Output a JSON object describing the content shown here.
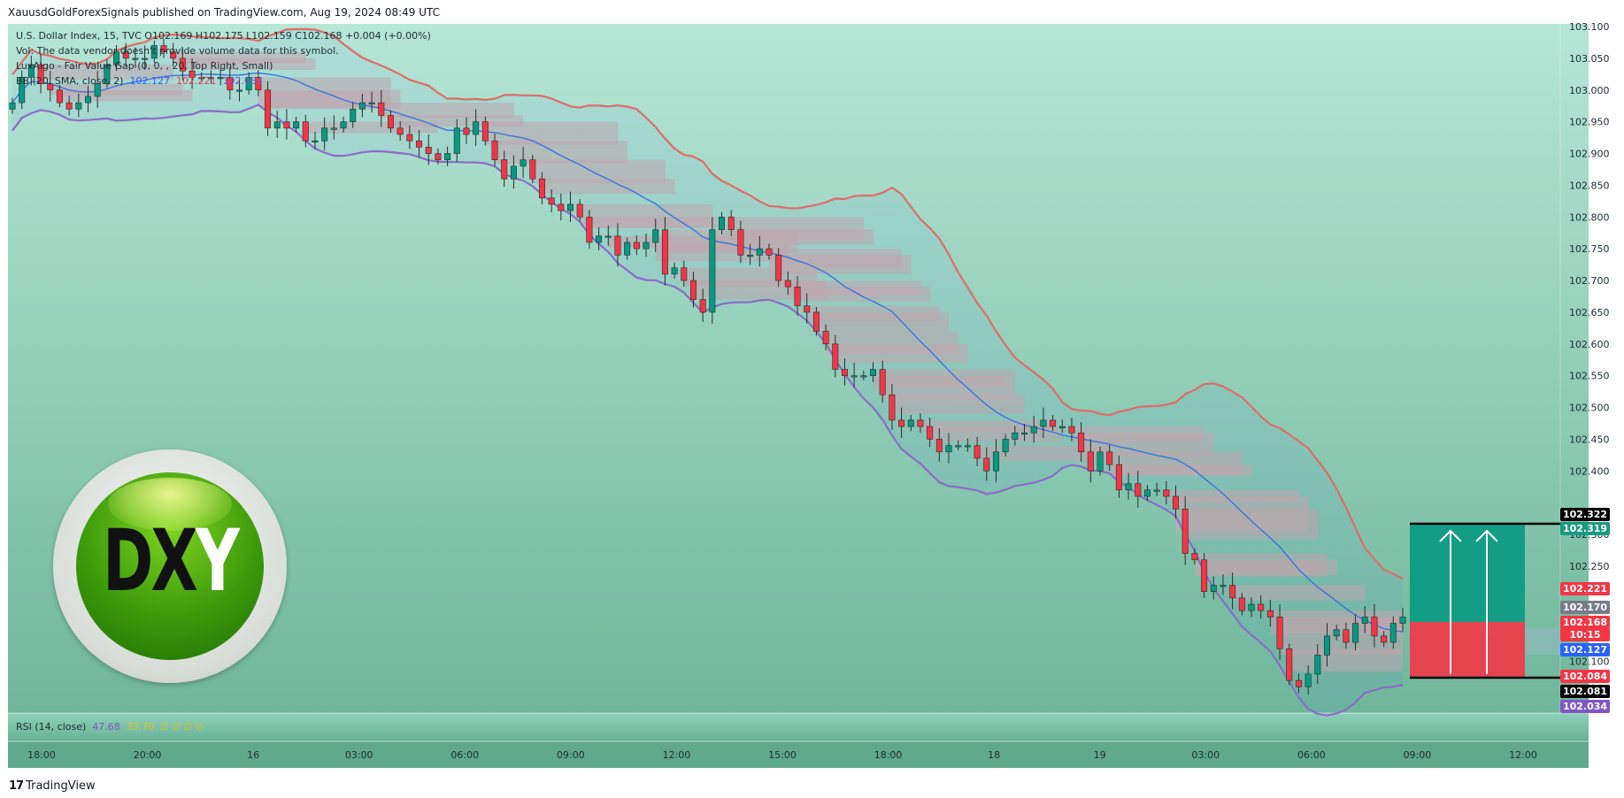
{
  "header": {
    "published": "XauusdGoldForexSignals published on TradingView.com, Aug 19, 2024 08:49 UTC"
  },
  "legend": {
    "line1": "U.S. Dollar Index, 15, TVC  O102.169  H102.175  L102.159  C102.168  +0.004 (+0.00%)",
    "line2": "Vol: The data vendor doesn't provide volume data for this symbol.",
    "line3": "LuxAlgo - Fair Value Gap (0, 0, , 20, Top Right, Small)",
    "line4_prefix": "BB (20, SMA, close, 2)",
    "bb_basis": "102.127",
    "bb_upper": "102.221",
    "bb_lower": "102.034"
  },
  "rsi": {
    "label": "RSI (14, close)",
    "value": "47.68",
    "ma": "33.70",
    "extra": "∅ ∅ ∅ ∅"
  },
  "logo": {
    "letters_dark": "DX",
    "letter_light": "Y"
  },
  "footer": {
    "brand_mark": "17",
    "brand": "TradingView"
  },
  "price_labels": [
    {
      "text": "102.322",
      "bg": "#000000"
    },
    {
      "text": "102.319",
      "bg": "#1a9a80"
    },
    {
      "text": "102.221",
      "bg": "#f23645"
    },
    {
      "text": "102.170",
      "bg": "#787b86"
    },
    {
      "text": "102.168",
      "bg": "#f23645"
    },
    {
      "text": "10:15",
      "bg": "#f23645"
    },
    {
      "text": "102.127",
      "bg": "#2962ff"
    },
    {
      "text": "102.084",
      "bg": "#f23645"
    },
    {
      "text": "102.081",
      "bg": "#000000"
    },
    {
      "text": "102.034",
      "bg": "#7e57c2"
    }
  ],
  "colors": {
    "up": "#089981",
    "down": "#f23645",
    "upper_band": "#e06b6b",
    "basis": "#3a73e0",
    "lower_band": "#8a6cc8",
    "fvg": "#c9a9a9",
    "bg_top": "#b6e6d6",
    "bg_bottom": "#6fb69b"
  },
  "chart_data": {
    "type": "candlestick",
    "title": "U.S. Dollar Index, 15, TVC",
    "ylim": [
      102.02,
      103.1
    ],
    "y_ticks": [
      "103.100",
      "103.050",
      "103.000",
      "102.950",
      "102.900",
      "102.850",
      "102.800",
      "102.750",
      "102.700",
      "102.650",
      "102.600",
      "102.550",
      "102.500",
      "102.450",
      "102.400",
      "102.300",
      "102.250",
      "102.100"
    ],
    "x_ticks": [
      "18:00",
      "20:00",
      "16",
      "03:00",
      "06:00",
      "09:00",
      "12:00",
      "15:00",
      "18:00",
      "18",
      "19",
      "03:00",
      "06:00",
      "09:00",
      "12:00"
    ],
    "closes": [
      102.98,
      103.02,
      103.04,
      103.01,
      103.0,
      102.98,
      102.97,
      102.98,
      102.99,
      103.01,
      103.04,
      103.06,
      103.05,
      103.05,
      103.05,
      103.07,
      103.06,
      103.05,
      103.03,
      103.02,
      103.02,
      103.02,
      103.02,
      103.0,
      103.0,
      103.02,
      103.0,
      102.94,
      102.95,
      102.94,
      102.95,
      102.92,
      102.92,
      102.94,
      102.94,
      102.95,
      102.97,
      102.98,
      102.98,
      102.96,
      102.94,
      102.93,
      102.92,
      102.91,
      102.9,
      102.89,
      102.9,
      102.94,
      102.93,
      102.95,
      102.92,
      102.89,
      102.86,
      102.88,
      102.89,
      102.86,
      102.83,
      102.82,
      102.81,
      102.82,
      102.8,
      102.76,
      102.77,
      102.77,
      102.74,
      102.76,
      102.75,
      102.76,
      102.78,
      102.71,
      102.72,
      102.7,
      102.67,
      102.65,
      102.78,
      102.8,
      102.78,
      102.74,
      102.74,
      102.75,
      102.74,
      102.7,
      102.69,
      102.66,
      102.65,
      102.62,
      102.6,
      102.56,
      102.55,
      102.55,
      102.55,
      102.56,
      102.52,
      102.48,
      102.47,
      102.48,
      102.47,
      102.45,
      102.43,
      102.44,
      102.44,
      102.44,
      102.42,
      102.4,
      102.43,
      102.45,
      102.46,
      102.46,
      102.47,
      102.48,
      102.47,
      102.47,
      102.46,
      102.43,
      102.4,
      102.43,
      102.41,
      102.37,
      102.38,
      102.36,
      102.37,
      102.37,
      102.36,
      102.34,
      102.27,
      102.26,
      102.21,
      102.22,
      102.22,
      102.2,
      102.18,
      102.19,
      102.18,
      102.17,
      102.12,
      102.07,
      102.06,
      102.08,
      102.11,
      102.14,
      102.15,
      102.13,
      102.16,
      102.17,
      102.14,
      102.13,
      102.16,
      102.17
    ]
  }
}
